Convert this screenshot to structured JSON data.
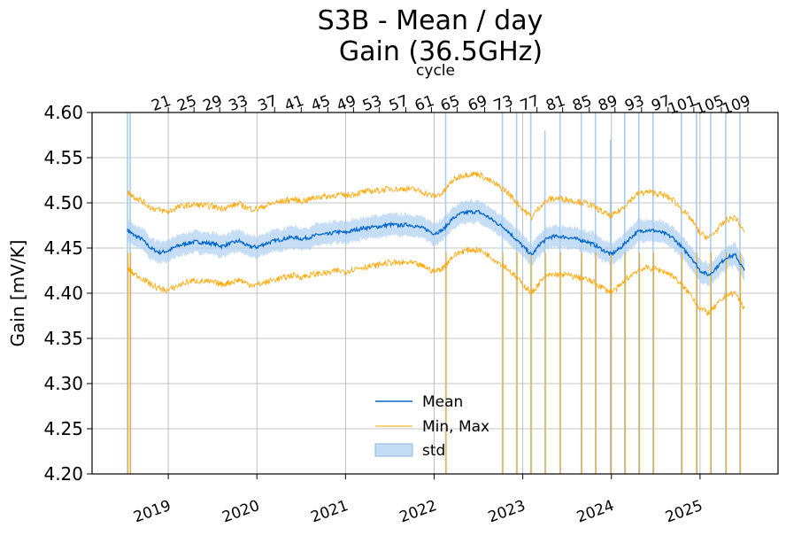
{
  "chart_data": {
    "type": "line",
    "title_lines": [
      "S3B - Mean / day",
      "Gain (36.5GHz)"
    ],
    "ylabel": "Gain [mV/K]",
    "secondary_xlabel": "cycle",
    "ylim": [
      4.2,
      4.6
    ],
    "xlim": [
      2018.14,
      2025.88
    ],
    "yticks": [
      "4.20",
      "4.25",
      "4.30",
      "4.35",
      "4.40",
      "4.45",
      "4.50",
      "4.55",
      "4.60"
    ],
    "xticks": [
      "2019",
      "2020",
      "2021",
      "2022",
      "2023",
      "2024",
      "2025"
    ],
    "cycle_ticks": [
      "21",
      "25",
      "29",
      "33",
      "37",
      "41",
      "45",
      "49",
      "53",
      "57",
      "61",
      "65",
      "69",
      "73",
      "77",
      "81",
      "85",
      "89",
      "93",
      "97",
      "101",
      "105",
      "109"
    ],
    "cycle_tick_years": [
      2019.0,
      2019.29,
      2019.58,
      2019.87,
      2020.2,
      2020.5,
      2020.8,
      2021.09,
      2021.38,
      2021.68,
      2021.97,
      2022.26,
      2022.57,
      2022.86,
      2023.16,
      2023.45,
      2023.75,
      2024.04,
      2024.34,
      2024.64,
      2024.93,
      2025.24,
      2025.54
    ],
    "grid": true,
    "legend": {
      "placement": "lower-center",
      "entries": [
        "Mean",
        "Min, Max",
        "std"
      ]
    },
    "colors": {
      "mean": "#0066cc",
      "minmax": "#ffa500",
      "std": "#a8cdf0"
    },
    "series": [
      {
        "name": "Mean",
        "x": [
          2018.54,
          2018.6,
          2018.7,
          2018.8,
          2018.9,
          2019.0,
          2019.1,
          2019.2,
          2019.3,
          2019.4,
          2019.5,
          2019.6,
          2019.7,
          2019.8,
          2019.9,
          2020.0,
          2020.1,
          2020.2,
          2020.3,
          2020.4,
          2020.5,
          2020.6,
          2020.7,
          2020.8,
          2020.9,
          2021.0,
          2021.1,
          2021.2,
          2021.3,
          2021.4,
          2021.5,
          2021.6,
          2021.7,
          2021.8,
          2021.9,
          2022.0,
          2022.1,
          2022.2,
          2022.3,
          2022.4,
          2022.5,
          2022.6,
          2022.7,
          2022.8,
          2022.9,
          2023.0,
          2023.1,
          2023.2,
          2023.3,
          2023.4,
          2023.5,
          2023.6,
          2023.7,
          2023.8,
          2023.9,
          2024.0,
          2024.1,
          2024.2,
          2024.3,
          2024.4,
          2024.5,
          2024.6,
          2024.7,
          2024.8,
          2024.9,
          2025.0,
          2025.1,
          2025.2,
          2025.3,
          2025.4,
          2025.5
        ],
        "y": [
          4.47,
          4.465,
          4.46,
          4.45,
          4.445,
          4.447,
          4.452,
          4.455,
          4.457,
          4.456,
          4.455,
          4.452,
          4.455,
          4.458,
          4.452,
          4.451,
          4.455,
          4.458,
          4.46,
          4.462,
          4.46,
          4.462,
          4.465,
          4.465,
          4.468,
          4.467,
          4.47,
          4.472,
          4.473,
          4.474,
          4.476,
          4.475,
          4.476,
          4.474,
          4.471,
          4.466,
          4.47,
          4.482,
          4.488,
          4.49,
          4.49,
          4.485,
          4.478,
          4.472,
          4.462,
          4.452,
          4.442,
          4.455,
          4.462,
          4.463,
          4.462,
          4.46,
          4.458,
          4.454,
          4.448,
          4.443,
          4.45,
          4.46,
          4.468,
          4.47,
          4.469,
          4.466,
          4.461,
          4.45,
          4.44,
          4.425,
          4.42,
          4.43,
          4.44,
          4.442,
          4.425
        ]
      },
      {
        "name": "Min, Max",
        "x": [
          2018.54,
          2018.6,
          2018.7,
          2018.8,
          2018.9,
          2019.0,
          2019.1,
          2019.2,
          2019.3,
          2019.4,
          2019.5,
          2019.6,
          2019.7,
          2019.8,
          2019.9,
          2020.0,
          2020.1,
          2020.2,
          2020.3,
          2020.4,
          2020.5,
          2020.6,
          2020.7,
          2020.8,
          2020.9,
          2021.0,
          2021.1,
          2021.2,
          2021.3,
          2021.4,
          2021.5,
          2021.6,
          2021.7,
          2021.8,
          2021.9,
          2022.0,
          2022.1,
          2022.2,
          2022.3,
          2022.4,
          2022.5,
          2022.6,
          2022.7,
          2022.8,
          2022.9,
          2023.0,
          2023.1,
          2023.2,
          2023.3,
          2023.4,
          2023.5,
          2023.6,
          2023.7,
          2023.8,
          2023.9,
          2024.0,
          2024.1,
          2024.2,
          2024.3,
          2024.4,
          2024.5,
          2024.6,
          2024.7,
          2024.8,
          2024.9,
          2025.0,
          2025.1,
          2025.2,
          2025.3,
          2025.4,
          2025.5
        ],
        "max": [
          4.512,
          4.508,
          4.502,
          4.495,
          4.492,
          4.49,
          4.495,
          4.497,
          4.498,
          4.497,
          4.496,
          4.494,
          4.496,
          4.499,
          4.494,
          4.493,
          4.497,
          4.5,
          4.502,
          4.504,
          4.502,
          4.504,
          4.507,
          4.507,
          4.509,
          4.508,
          4.51,
          4.512,
          4.513,
          4.514,
          4.516,
          4.515,
          4.516,
          4.514,
          4.511,
          4.507,
          4.511,
          4.524,
          4.53,
          4.532,
          4.532,
          4.526,
          4.52,
          4.514,
          4.504,
          4.493,
          4.484,
          4.497,
          4.504,
          4.505,
          4.504,
          4.502,
          4.5,
          4.496,
          4.49,
          4.485,
          4.492,
          4.502,
          4.51,
          4.512,
          4.511,
          4.508,
          4.503,
          4.492,
          4.482,
          4.466,
          4.461,
          4.471,
          4.481,
          4.484,
          4.467
        ],
        "min": [
          4.428,
          4.422,
          4.417,
          4.41,
          4.405,
          4.403,
          4.408,
          4.412,
          4.414,
          4.413,
          4.412,
          4.41,
          4.412,
          4.415,
          4.41,
          4.409,
          4.412,
          4.415,
          4.417,
          4.42,
          4.418,
          4.42,
          4.422,
          4.422,
          4.425,
          4.424,
          4.427,
          4.429,
          4.43,
          4.432,
          4.434,
          4.433,
          4.434,
          4.432,
          4.429,
          4.424,
          4.428,
          4.44,
          4.446,
          4.448,
          4.448,
          4.443,
          4.436,
          4.43,
          4.42,
          4.41,
          4.4,
          4.413,
          4.42,
          4.421,
          4.42,
          4.418,
          4.416,
          4.412,
          4.406,
          4.401,
          4.408,
          4.418,
          4.426,
          4.428,
          4.427,
          4.424,
          4.419,
          4.408,
          4.398,
          4.383,
          4.378,
          4.388,
          4.398,
          4.4,
          4.383
        ]
      },
      {
        "name": "std",
        "band_halfwidth": 0.012
      }
    ],
    "spikes": [
      {
        "x": 2018.54,
        "min": 4.2,
        "max": 4.6
      },
      {
        "x": 2018.57,
        "min": 4.2,
        "max": 4.6
      },
      {
        "x": 2022.13,
        "min": 4.2,
        "max": 4.6
      },
      {
        "x": 2022.77,
        "min": 4.2,
        "max": 4.6
      },
      {
        "x": 2022.93,
        "min": 4.2,
        "max": 4.6
      },
      {
        "x": 2023.09,
        "min": 4.2,
        "max": 4.6
      },
      {
        "x": 2023.25,
        "min": 4.2,
        "max": 4.58
      },
      {
        "x": 2023.42,
        "min": 4.2,
        "max": 4.6
      },
      {
        "x": 2023.66,
        "min": 4.2,
        "max": 4.6
      },
      {
        "x": 2023.82,
        "min": 4.2,
        "max": 4.6
      },
      {
        "x": 2023.99,
        "min": 4.2,
        "max": 4.57
      },
      {
        "x": 2024.15,
        "min": 4.2,
        "max": 4.6
      },
      {
        "x": 2024.31,
        "min": 4.2,
        "max": 4.6
      },
      {
        "x": 2024.47,
        "min": 4.2,
        "max": 4.6
      },
      {
        "x": 2024.79,
        "min": 4.2,
        "max": 4.6
      },
      {
        "x": 2024.96,
        "min": 4.2,
        "max": 4.6
      },
      {
        "x": 2025.12,
        "min": 4.2,
        "max": 4.6
      },
      {
        "x": 2025.29,
        "min": 4.2,
        "max": 4.6
      },
      {
        "x": 2025.45,
        "min": 4.2,
        "max": 4.6
      }
    ]
  }
}
